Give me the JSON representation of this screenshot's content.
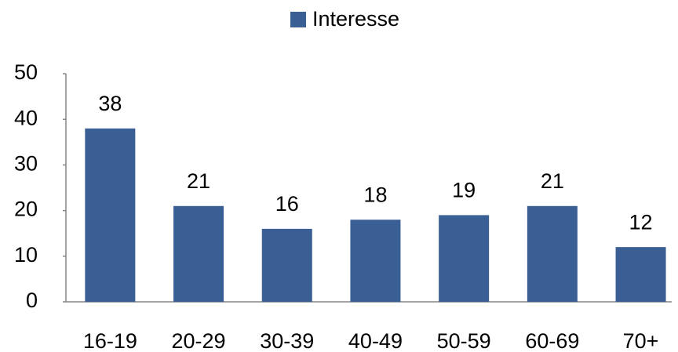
{
  "chart_data": {
    "type": "bar",
    "categories": [
      "16-19",
      "20-29",
      "30-39",
      "40-49",
      "50-59",
      "60-69",
      "70+"
    ],
    "series": [
      {
        "name": "Interesse",
        "color": "#3a5f94",
        "values": [
          38,
          21,
          16,
          18,
          19,
          21,
          12
        ]
      }
    ],
    "ylim": [
      0,
      50
    ],
    "yticks": [
      0,
      10,
      20,
      30,
      40,
      50
    ],
    "grid": false,
    "legend": "top",
    "data_labels": true
  }
}
